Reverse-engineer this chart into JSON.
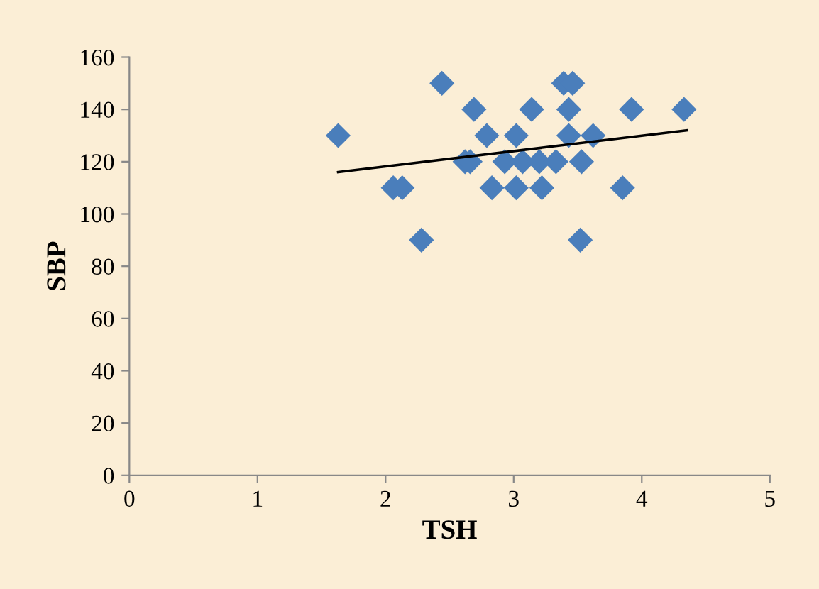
{
  "chart_data": {
    "type": "scatter",
    "xlabel": "TSH",
    "ylabel": "SBP",
    "xlim": [
      0,
      5
    ],
    "ylim": [
      0,
      160
    ],
    "xticks": [
      0,
      1,
      2,
      3,
      4,
      5
    ],
    "yticks": [
      0,
      20,
      40,
      60,
      80,
      100,
      120,
      140,
      160
    ],
    "grid": false,
    "legend": false,
    "series": [
      {
        "marker": "diamond",
        "color": "#4a7ebb",
        "x": [
          1.63,
          2.44,
          2.06,
          2.13,
          2.28,
          2.69,
          2.79,
          2.62,
          2.66,
          2.83,
          3.02,
          2.93,
          3.02,
          3.07,
          3.14,
          3.22,
          3.2,
          3.33,
          3.39,
          3.46,
          3.43,
          3.43,
          3.53,
          3.52,
          3.62,
          3.85,
          3.92,
          4.33
        ],
        "values": [
          130,
          150,
          110,
          110,
          90,
          140,
          130,
          120,
          120,
          110,
          130,
          120,
          110,
          120,
          140,
          110,
          120,
          120,
          150,
          150,
          140,
          130,
          120,
          90,
          130,
          110,
          140,
          140
        ]
      },
      {
        "type": "line",
        "marker": "none",
        "color": "#000000",
        "x": [
          1.63,
          4.35
        ],
        "values": [
          116,
          132
        ]
      }
    ]
  }
}
